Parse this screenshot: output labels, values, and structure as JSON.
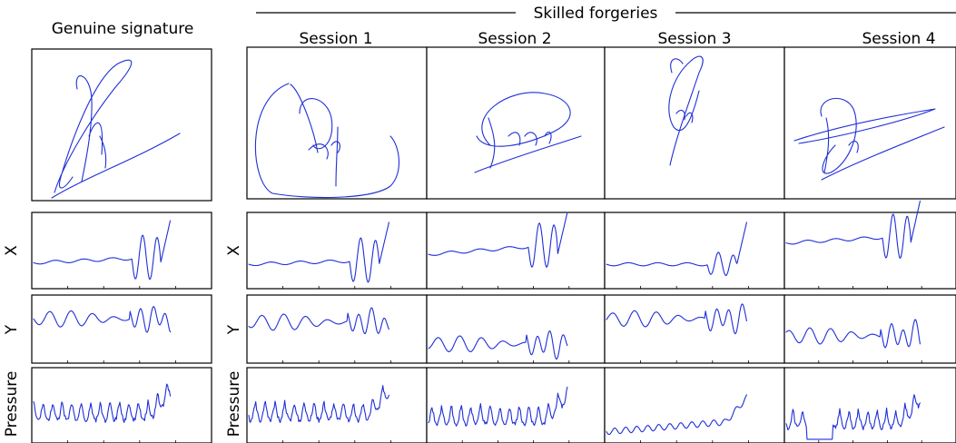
{
  "figure": {
    "genuine_title": "Genuine signature",
    "forgeries_title": "Skilled forgeries",
    "sessions": [
      "Session 1",
      "Session 2",
      "Session 3",
      "Session 4"
    ],
    "row_labels": [
      "X",
      "Y",
      "Pressure"
    ],
    "trace_color": "#1f2fd6",
    "panels": [
      {
        "id": "genuine",
        "kind": "genuine"
      },
      {
        "id": "session-1",
        "kind": "forgery",
        "session": 1
      },
      {
        "id": "session-2",
        "kind": "forgery",
        "session": 2
      },
      {
        "id": "session-3",
        "kind": "forgery",
        "session": 3
      },
      {
        "id": "session-4",
        "kind": "forgery",
        "session": 4
      }
    ]
  }
}
